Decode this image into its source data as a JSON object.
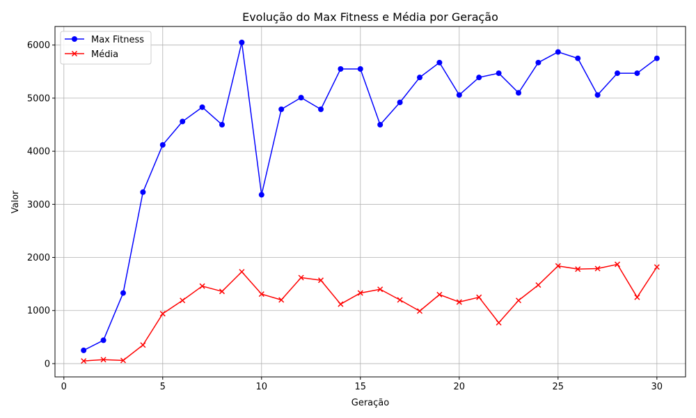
{
  "chart_data": {
    "type": "line",
    "title": "Evolução do Max Fitness e Média por Geração",
    "xlabel": "Geração",
    "ylabel": "Valor",
    "xlim": [
      -0.45,
      31.45
    ],
    "ylim": [
      -250,
      6350
    ],
    "xticks": [
      0,
      5,
      10,
      15,
      20,
      25,
      30
    ],
    "yticks": [
      0,
      1000,
      2000,
      3000,
      4000,
      5000,
      6000
    ],
    "grid": true,
    "legend_position": "top-left",
    "x": [
      1,
      2,
      3,
      4,
      5,
      6,
      7,
      8,
      9,
      10,
      11,
      12,
      13,
      14,
      15,
      16,
      17,
      18,
      19,
      20,
      21,
      22,
      23,
      24,
      25,
      26,
      27,
      28,
      29,
      30
    ],
    "series": [
      {
        "name": "Max Fitness",
        "color": "#0000ff",
        "marker": "circle",
        "values": [
          250,
          440,
          1330,
          3230,
          4120,
          4560,
          4830,
          4500,
          6050,
          3180,
          4790,
          5010,
          4790,
          5550,
          5550,
          4500,
          4920,
          5390,
          5670,
          5060,
          5390,
          5470,
          5100,
          5670,
          5870,
          5750,
          5060,
          5470,
          5470,
          5750
        ]
      },
      {
        "name": "Média",
        "color": "#ff0000",
        "marker": "x",
        "values": [
          50,
          75,
          60,
          350,
          940,
          1190,
          1460,
          1360,
          1730,
          1310,
          1200,
          1620,
          1570,
          1120,
          1330,
          1400,
          1200,
          990,
          1300,
          1160,
          1250,
          770,
          1190,
          1480,
          1840,
          1780,
          1790,
          1870,
          1250,
          1820
        ]
      }
    ]
  }
}
